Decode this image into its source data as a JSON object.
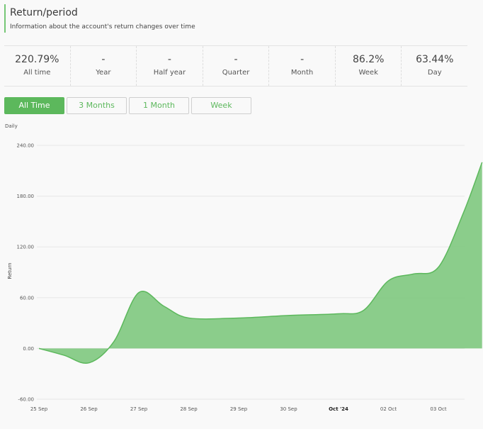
{
  "header": {
    "title": "Return/period",
    "subtitle": "Information about the account's return changes over time"
  },
  "stats": [
    {
      "value": "220.79%",
      "label": "All time"
    },
    {
      "value": "-",
      "label": "Year"
    },
    {
      "value": "-",
      "label": "Half year"
    },
    {
      "value": "-",
      "label": "Quarter"
    },
    {
      "value": "-",
      "label": "Month"
    },
    {
      "value": "86.2%",
      "label": "Week"
    },
    {
      "value": "63.44%",
      "label": "Day"
    }
  ],
  "period_buttons": [
    {
      "label": "All Time",
      "active": true
    },
    {
      "label": "3 Months",
      "active": false
    },
    {
      "label": "1 Month",
      "active": false
    },
    {
      "label": "Week",
      "active": false
    }
  ],
  "chart_caption": "Daily",
  "colors": {
    "accent": "#5cb85c",
    "area_fill": "#7bc67b"
  },
  "chart_data": {
    "type": "area",
    "title": "",
    "xlabel": "",
    "ylabel": "Return",
    "ylim": [
      -60,
      240
    ],
    "y_ticks": [
      "240.00",
      "180.00",
      "120.00",
      "60.00",
      "0.00",
      "-60.00"
    ],
    "x_ticks": [
      "25 Sep",
      "26 Sep",
      "27 Sep",
      "28 Sep",
      "29 Sep",
      "30 Sep",
      "Oct '24",
      "02 Oct",
      "03 Oct"
    ],
    "grid": true,
    "series": [
      {
        "x": [
          "25 Sep 00:00",
          "25 Sep 12:00",
          "26 Sep 00:00",
          "26 Sep 12:00",
          "27 Sep 00:00",
          "27 Sep 12:00",
          "28 Sep 00:00",
          "29 Sep 00:00",
          "30 Sep 00:00",
          "01 Oct 00:00",
          "01 Oct 12:00",
          "02 Oct 00:00",
          "02 Oct 12:00",
          "03 Oct 00:00",
          "03 Oct 12:00",
          "03 Oct 21:00"
        ],
        "values": [
          0,
          -8,
          -17,
          8,
          66,
          50,
          36,
          36,
          39,
          41,
          45,
          80,
          88,
          96,
          160,
          220
        ]
      }
    ]
  }
}
